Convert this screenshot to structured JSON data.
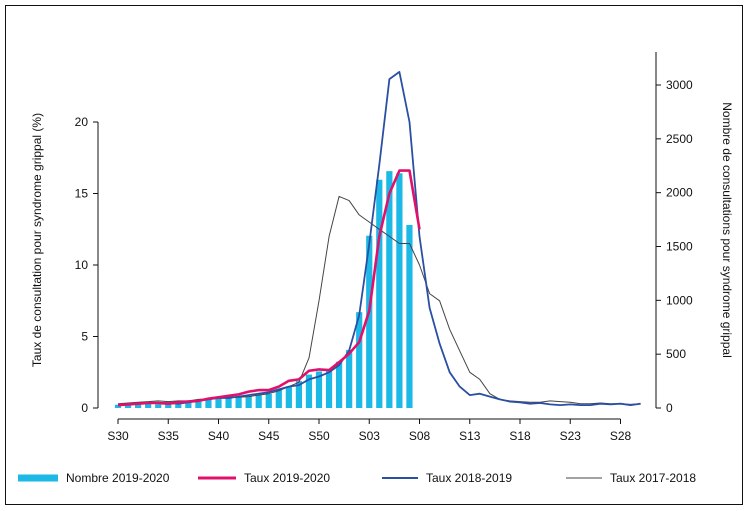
{
  "chart_data": {
    "type": "bar",
    "title": "",
    "xlabel": "",
    "ylabel_left": "Taux de consultation pour syndrome grippal (%)",
    "ylabel_right": "Nombre de consultations pour syndrome grippal",
    "ylim_left": [
      0,
      23
    ],
    "ylim_right": [
      0,
      3300
    ],
    "yticks_left": [
      0,
      5,
      10,
      15,
      20
    ],
    "yticks_right": [
      0,
      500,
      1000,
      1500,
      2000,
      2500,
      3000
    ],
    "x_count": 53,
    "x_tick_labels": [
      "S30",
      "S35",
      "S40",
      "S45",
      "S50",
      "S03",
      "S08",
      "S13",
      "S18",
      "S23",
      "S28"
    ],
    "x_tick_indices": [
      0,
      5,
      10,
      15,
      20,
      25,
      30,
      35,
      40,
      45,
      50
    ],
    "grid": false,
    "legend_position": "bottom",
    "series": [
      {
        "name": "Nombre 2019-2020",
        "kind": "bar",
        "axis": "right",
        "color": "#1cb8e6",
        "values": [
          30,
          30,
          35,
          40,
          35,
          35,
          35,
          60,
          70,
          90,
          100,
          100,
          100,
          110,
          120,
          130,
          170,
          200,
          250,
          310,
          340,
          360,
          430,
          540,
          890,
          1600,
          2120,
          2200,
          2180,
          1700
        ]
      },
      {
        "name": "Taux 2019-2020",
        "kind": "line",
        "axis": "left",
        "color": "#e0116b",
        "values": [
          0.2,
          0.25,
          0.3,
          0.35,
          0.35,
          0.3,
          0.4,
          0.45,
          0.5,
          0.65,
          0.75,
          0.85,
          0.95,
          1.15,
          1.25,
          1.25,
          1.5,
          1.9,
          2.0,
          2.6,
          2.7,
          2.65,
          3.2,
          3.8,
          4.6,
          6.8,
          12.0,
          15.0,
          16.6,
          16.6,
          12.5
        ]
      },
      {
        "name": "Taux 2018-2019",
        "kind": "line",
        "axis": "left",
        "color": "#2a4fa3",
        "values": [
          0.2,
          0.25,
          0.3,
          0.35,
          0.35,
          0.35,
          0.3,
          0.4,
          0.5,
          0.6,
          0.7,
          0.7,
          0.8,
          0.9,
          1.0,
          1.1,
          1.3,
          1.5,
          1.6,
          2.0,
          2.2,
          2.5,
          3.0,
          4.0,
          6.5,
          11.5,
          17.0,
          23.0,
          23.5,
          20.0,
          12.0,
          7.0,
          4.5,
          2.5,
          1.5,
          0.9,
          1.0,
          0.8,
          0.6,
          0.45,
          0.4,
          0.3,
          0.35,
          0.25,
          0.2,
          0.25,
          0.2,
          0.2,
          0.3,
          0.25,
          0.3,
          0.2,
          0.3
        ]
      },
      {
        "name": "Taux 2017-2018",
        "kind": "line",
        "axis": "left",
        "color": "#444444",
        "values": [
          0.3,
          0.35,
          0.4,
          0.45,
          0.5,
          0.45,
          0.5,
          0.5,
          0.6,
          0.65,
          0.7,
          0.75,
          0.75,
          0.8,
          0.9,
          1.0,
          1.2,
          1.5,
          1.8,
          3.5,
          7.5,
          12.0,
          14.8,
          14.5,
          13.5,
          13.0,
          12.5,
          12.0,
          11.5,
          11.5,
          10.0,
          8.0,
          7.5,
          5.5,
          4.0,
          2.5,
          2.0,
          1.0,
          0.6,
          0.5,
          0.45,
          0.4,
          0.4,
          0.5,
          0.45,
          0.4,
          0.3,
          0.3,
          0.35,
          0.3,
          0.3,
          0.25,
          0.3
        ]
      }
    ]
  }
}
